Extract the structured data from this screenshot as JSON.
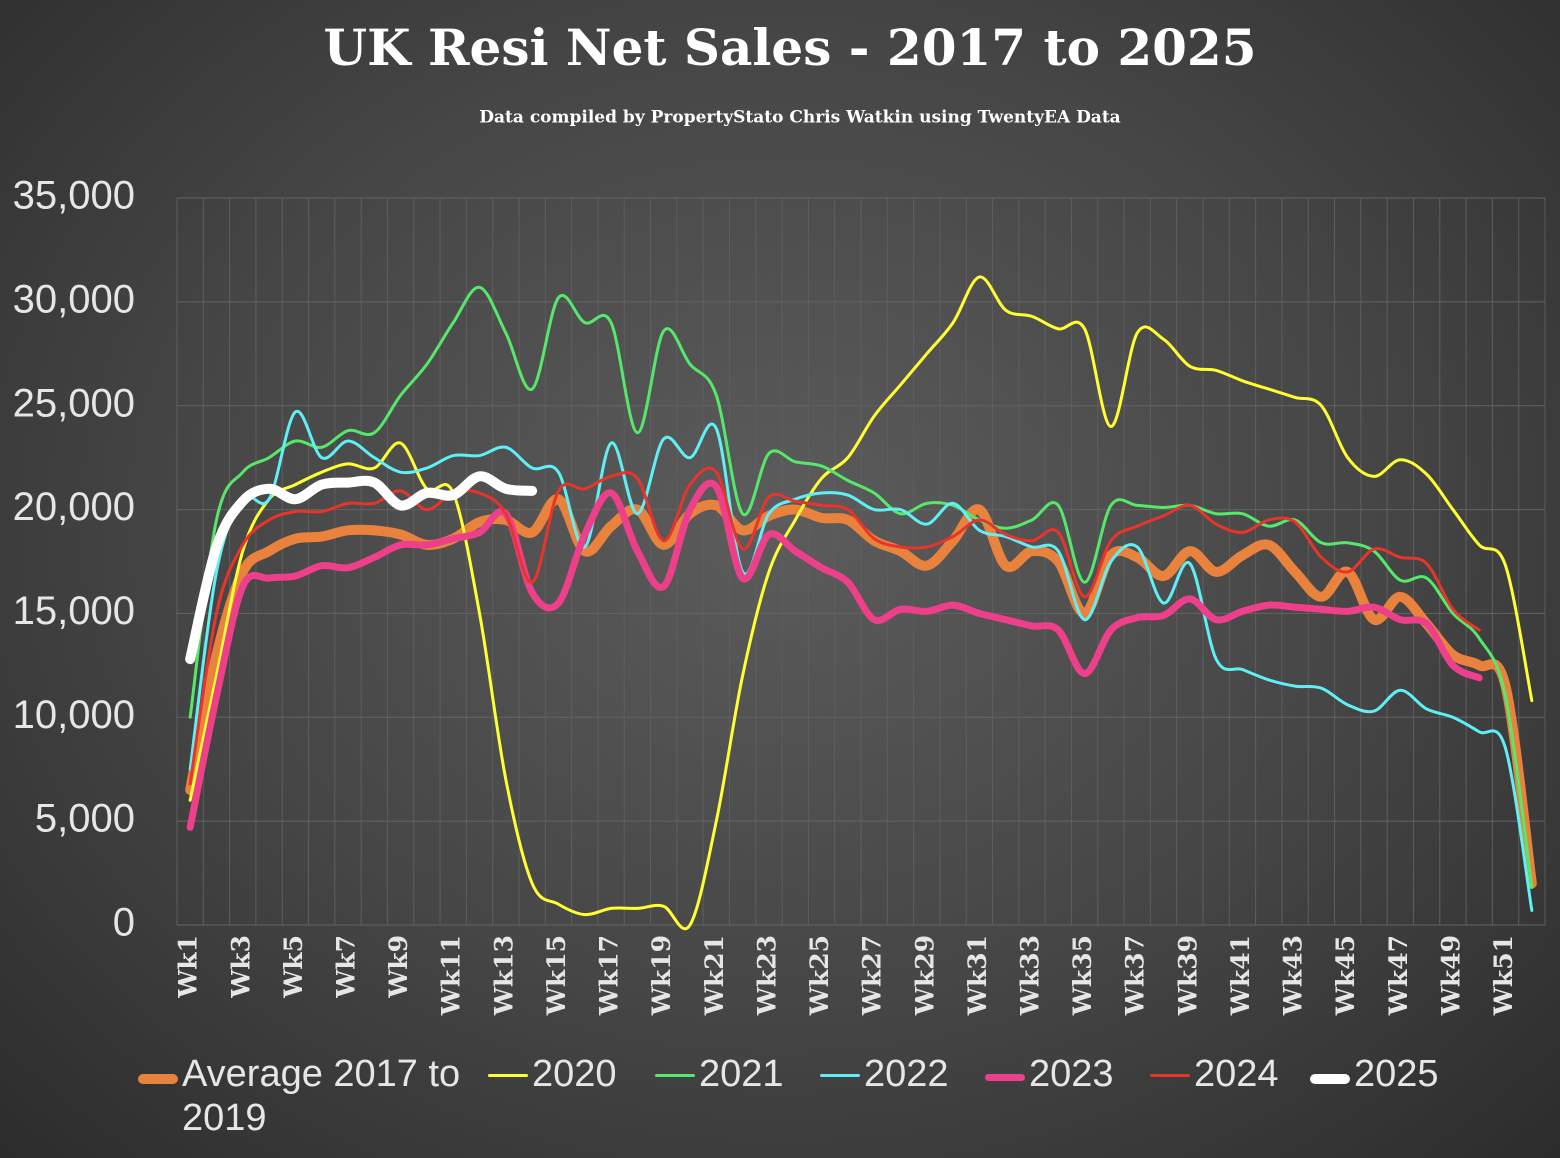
{
  "chart_data": {
    "type": "line",
    "title": "UK  Resi Net Sales - 2017 to 2025",
    "subtitle": "Data compiled by PropertyStato Chris Watkin using TwentyEA Data",
    "categories": [
      "Wk1",
      null,
      "Wk3",
      null,
      "Wk5",
      null,
      "Wk7",
      null,
      "Wk9",
      null,
      "Wk11",
      null,
      "Wk13",
      null,
      "Wk15",
      null,
      "Wk17",
      null,
      "Wk19",
      null,
      "Wk21",
      null,
      "Wk23",
      null,
      "Wk25",
      null,
      "Wk27",
      null,
      "Wk29",
      null,
      "Wk31",
      null,
      "Wk33",
      null,
      "Wk35",
      null,
      "Wk37",
      null,
      "Wk39",
      null,
      "Wk41",
      null,
      "Wk43",
      null,
      "Wk45",
      null,
      "Wk47",
      null,
      "Wk49",
      null,
      "Wk51",
      null
    ],
    "series": [
      {
        "name": "Average 2017 to 2019",
        "color": "#e8823c",
        "values": [
          6500,
          13000,
          17000,
          18000,
          18600,
          18700,
          19000,
          19000,
          18800,
          18300,
          18600,
          19400,
          19500,
          18900,
          20500,
          18000,
          19200,
          20000,
          18300,
          19800,
          20200,
          19000,
          19700,
          20000,
          19600,
          19500,
          18500,
          18000,
          17300,
          18500,
          20000,
          17300,
          18000,
          17500,
          15000,
          17800,
          17700,
          16800,
          18000,
          17000,
          17800,
          18300,
          17000,
          15800,
          17000,
          14700,
          15800,
          14500,
          13000,
          12500,
          11500,
          2000
        ]
      },
      {
        "name": "2020",
        "color": "#ffff33",
        "values": [
          6000,
          12000,
          18000,
          20500,
          21200,
          21800,
          22200,
          22000,
          23200,
          21000,
          20800,
          15000,
          7000,
          2000,
          1000,
          500,
          800,
          800,
          900,
          0,
          5000,
          12000,
          17000,
          19500,
          21500,
          22500,
          24500,
          26000,
          27500,
          29000,
          31200,
          29600,
          29300,
          28700,
          28700,
          24000,
          28500,
          28200,
          26900,
          26700,
          26200,
          25800,
          25400,
          25000,
          22500,
          21600,
          22400,
          21700,
          20000,
          18300,
          17300,
          10800
        ]
      },
      {
        "name": "2021",
        "color": "#55e86a",
        "values": [
          10000,
          19500,
          21800,
          22500,
          23300,
          23000,
          23800,
          23700,
          25500,
          27000,
          29000,
          30700,
          28500,
          25800,
          30200,
          29000,
          29000,
          23700,
          28600,
          27000,
          25500,
          19800,
          22700,
          22300,
          22100,
          21400,
          20800,
          19800,
          20300,
          20200,
          19500,
          19100,
          19500,
          20200,
          16500,
          20200,
          20200,
          20100,
          20200,
          19800,
          19800,
          19200,
          19500,
          18400,
          18400,
          18000,
          16600,
          16700,
          15000,
          13800,
          11000,
          1800
        ]
      },
      {
        "name": "2022",
        "color": "#5ff0f5",
        "values": [
          7500,
          17000,
          20500,
          20500,
          24700,
          22500,
          23300,
          22500,
          21800,
          22000,
          22600,
          22600,
          23000,
          22000,
          21800,
          18200,
          23200,
          19800,
          23400,
          22500,
          23900,
          17000,
          19800,
          20500,
          20800,
          20700,
          20000,
          20000,
          19300,
          20300,
          19000,
          18700,
          18200,
          18000,
          14700,
          17500,
          18200,
          15500,
          17400,
          12800,
          12300,
          11800,
          11500,
          11400,
          10600,
          10300,
          11300,
          10400,
          10000,
          9300,
          8500,
          700
        ]
      },
      {
        "name": "2023",
        "color": "#ee3f8a",
        "values": [
          4700,
          11000,
          16300,
          16700,
          16800,
          17300,
          17200,
          17700,
          18300,
          18300,
          18600,
          18900,
          19800,
          16000,
          15500,
          18800,
          20800,
          18000,
          16300,
          20000,
          21100,
          16700,
          18800,
          18000,
          17200,
          16500,
          14700,
          15200,
          15100,
          15400,
          15000,
          14700,
          14400,
          14200,
          12100,
          14200,
          14800,
          14900,
          15700,
          14700,
          15100,
          15400,
          15300,
          15200,
          15100,
          15300,
          14700,
          14500,
          12500,
          11900,
          null,
          null
        ]
      },
      {
        "name": "2024",
        "color": "#e8342a",
        "values": [
          6800,
          15000,
          18300,
          19500,
          19900,
          19900,
          20300,
          20300,
          20900,
          20000,
          20800,
          20800,
          19800,
          16500,
          20900,
          21000,
          21600,
          21500,
          18500,
          21200,
          21800,
          18100,
          20600,
          20400,
          20200,
          20000,
          18600,
          18200,
          18200,
          18700,
          19500,
          18800,
          18500,
          18900,
          15800,
          18500,
          19200,
          19700,
          20200,
          19300,
          18900,
          19500,
          19400,
          17700,
          17000,
          18100,
          17700,
          17400,
          15200,
          14200,
          null,
          null
        ]
      },
      {
        "name": "2025",
        "color": "#ffffff",
        "values": [
          12800,
          18200,
          20400,
          21000,
          20500,
          21200,
          21300,
          21300,
          20200,
          20800,
          20700,
          21600,
          21000,
          20900,
          null,
          null,
          null,
          null,
          null,
          null,
          null,
          null,
          null,
          null,
          null,
          null,
          null,
          null,
          null,
          null,
          null,
          null,
          null,
          null,
          null,
          null,
          null,
          null,
          null,
          null,
          null,
          null,
          null,
          null,
          null,
          null,
          null,
          null,
          null,
          null,
          null,
          null
        ]
      }
    ],
    "ylim": [
      0,
      35000
    ],
    "yticks": [
      {
        "value": 0,
        "label": "0"
      },
      {
        "value": 5000,
        "label": "5,000"
      },
      {
        "value": 10000,
        "label": "10,000"
      },
      {
        "value": 15000,
        "label": "15,000"
      },
      {
        "value": 20000,
        "label": "20,000"
      },
      {
        "value": 25000,
        "label": "25,000"
      },
      {
        "value": 30000,
        "label": "30,000"
      },
      {
        "value": 35000,
        "label": "35,000"
      }
    ],
    "grid": true,
    "legend": "bottom"
  }
}
